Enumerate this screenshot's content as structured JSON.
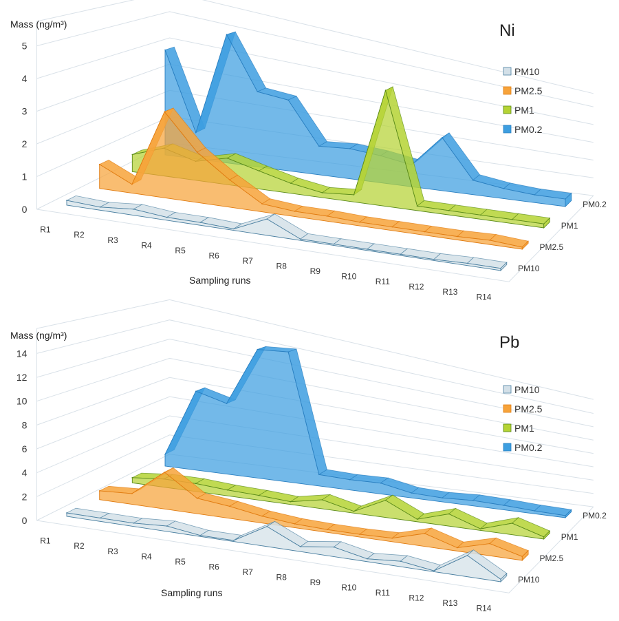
{
  "chart_data": [
    {
      "type": "3d-area",
      "title": "Ni",
      "ylabel": "Mass (ng/m³)",
      "xlabel": "Sampling runs",
      "ylim": [
        0,
        5
      ],
      "yticks": [
        "0",
        "1",
        "2",
        "3",
        "4",
        "5"
      ],
      "grid": true,
      "legend_position": "right",
      "categories": [
        "R1",
        "R2",
        "R3",
        "R4",
        "R5",
        "R6",
        "R7",
        "R8",
        "R9",
        "R10",
        "R11",
        "R12",
        "R13",
        "R14"
      ],
      "series": [
        {
          "name": "PM10",
          "color": "#d3e0e8",
          "values": [
            0.15,
            0.1,
            0.2,
            0.1,
            0.1,
            0.05,
            0.6,
            0.05,
            0.05,
            0.05,
            0.05,
            0.05,
            0.1,
            0.1
          ]
        },
        {
          "name": "PM2.5",
          "color": "#f7a33a",
          "values": [
            0.8,
            0.3,
            3.0,
            1.8,
            1.0,
            0.3,
            0.2,
            0.2,
            0.15,
            0.15,
            0.15,
            0.15,
            0.2,
            0.1
          ]
        },
        {
          "name": "PM1",
          "color": "#b5d334",
          "values": [
            0.6,
            1.0,
            0.7,
            1.0,
            0.7,
            0.4,
            0.2,
            0.3,
            5.0,
            0.2,
            0.2,
            0.2,
            0.2,
            0.2
          ]
        },
        {
          "name": "PM0.2",
          "color": "#3d9ee0",
          "values": [
            3.9,
            1.0,
            5.0,
            3.0,
            2.9,
            1.2,
            1.3,
            1.2,
            1.0,
            2.5,
            0.7,
            0.5,
            0.4,
            0.4
          ]
        }
      ]
    },
    {
      "type": "3d-area",
      "title": "Pb",
      "ylabel": "Mass (ng/m³)",
      "xlabel": "Sampling runs",
      "ylim": [
        0,
        14
      ],
      "yticks": [
        "0",
        "2",
        "4",
        "6",
        "8",
        "10",
        "12",
        "14"
      ],
      "grid": true,
      "legend_position": "right",
      "categories": [
        "R1",
        "R2",
        "R3",
        "R4",
        "R5",
        "R6",
        "R7",
        "R8",
        "R9",
        "R10",
        "R11",
        "R12",
        "R13",
        "R14"
      ],
      "series": [
        {
          "name": "PM10",
          "color": "#d3e0e8",
          "values": [
            0.3,
            0.3,
            0.3,
            0.5,
            0.1,
            0.1,
            2.0,
            0.5,
            1.0,
            0.3,
            0.6,
            0.1,
            2.5,
            0.3
          ]
        },
        {
          "name": "PM2.5",
          "color": "#f7a33a",
          "values": [
            0.8,
            1.0,
            3.5,
            1.5,
            1.2,
            0.7,
            0.4,
            0.3,
            0.3,
            0.4,
            1.5,
            0.4,
            1.5,
            0.5
          ]
        },
        {
          "name": "PM1",
          "color": "#b5d334",
          "values": [
            0.5,
            0.8,
            0.8,
            0.6,
            0.5,
            0.3,
            1.0,
            0.2,
            2.0,
            0.3,
            1.5,
            0.2,
            1.5,
            0.3
          ]
        },
        {
          "name": "PM0.2",
          "color": "#3d9ee0",
          "values": [
            1.2,
            8.2,
            7.5,
            14.0,
            14.5,
            1.3,
            1.2,
            1.3,
            0.6,
            0.5,
            0.7,
            0.6,
            0.4,
            0.3
          ]
        }
      ]
    }
  ]
}
